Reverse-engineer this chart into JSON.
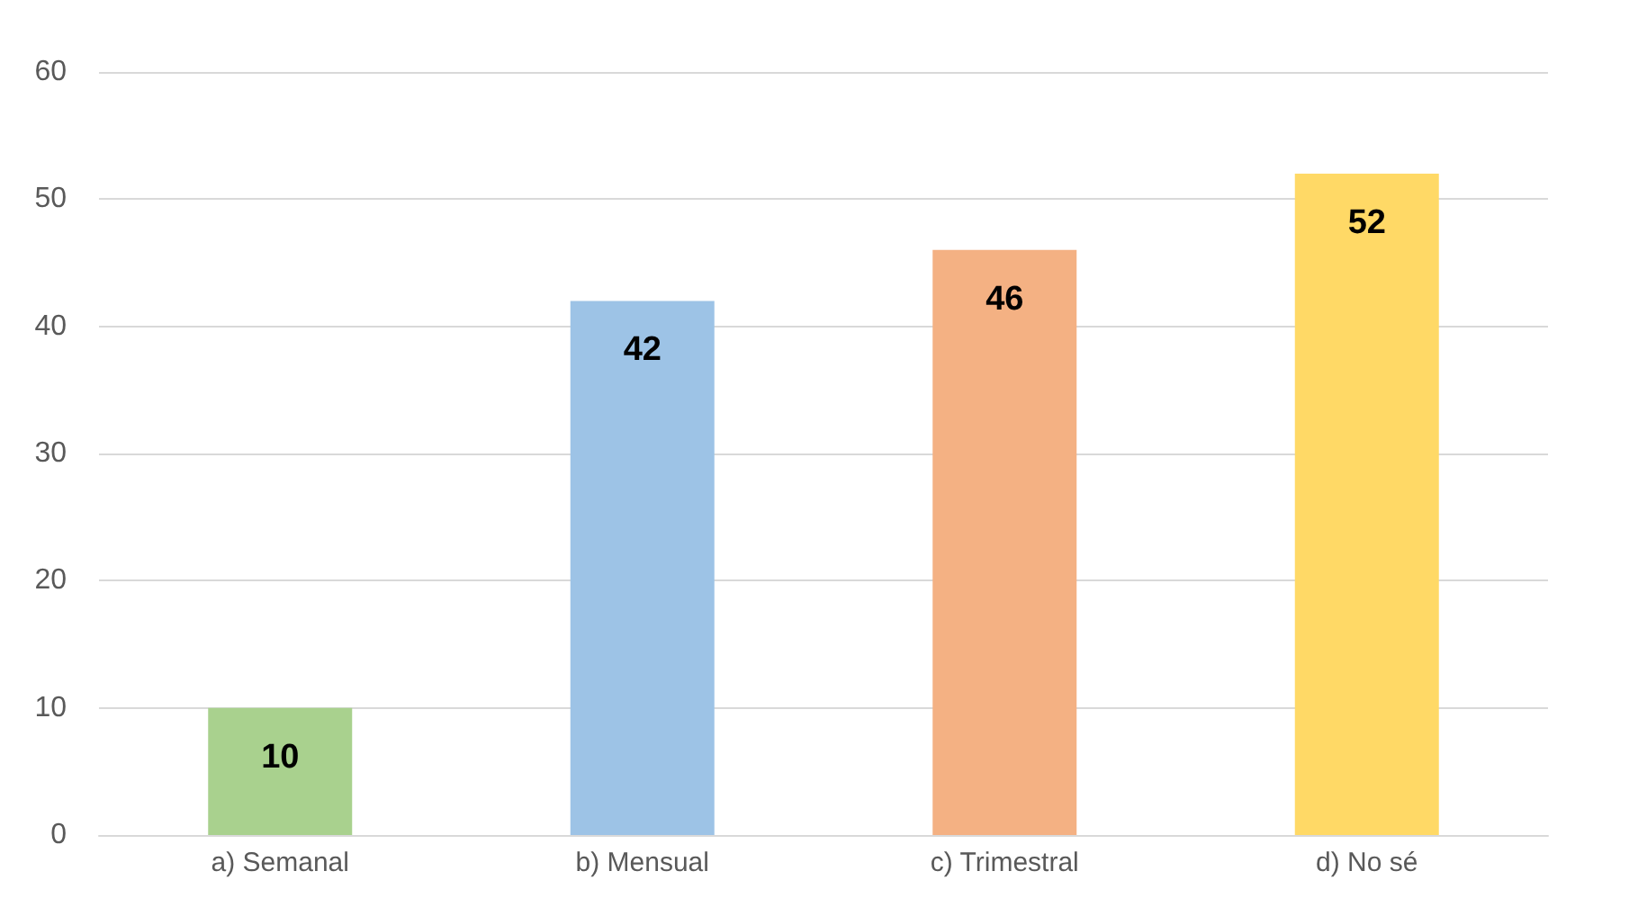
{
  "chart_data": {
    "type": "bar",
    "categories": [
      "a) Semanal",
      "b) Mensual",
      "c) Trimestral",
      "d) No sé"
    ],
    "values": [
      10,
      42,
      46,
      52
    ],
    "colors": [
      "#a9d18e",
      "#9dc3e6",
      "#f4b183",
      "#ffd966"
    ],
    "ylim": [
      0,
      60
    ],
    "yticks": [
      0,
      10,
      20,
      30,
      40,
      50,
      60
    ],
    "grid": true,
    "data_labels": true
  }
}
